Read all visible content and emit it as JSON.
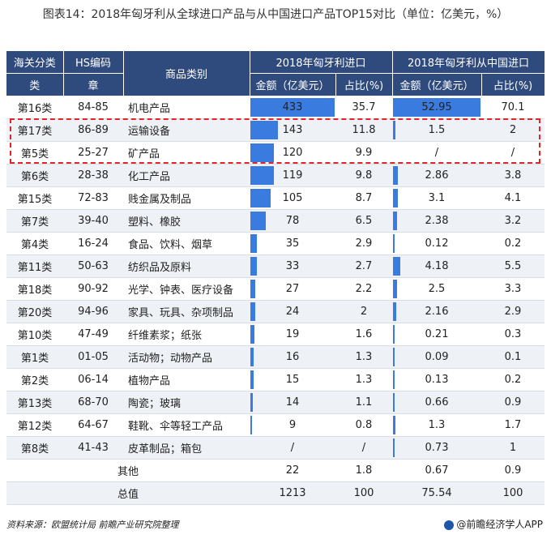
{
  "title": "图表14：2018年匈牙利从全球进口产品与从中国进口产品TOP15对比（单位：亿美元，%）",
  "headers": {
    "customs_class": "海关分类",
    "class_sub": "类",
    "hs_code": "HS编码",
    "hs_sub": "章",
    "category": "商品类别",
    "global_group": "2018年匈牙利进口",
    "china_group": "2018年匈牙利从中国进口",
    "amount": "金额（亿美元）",
    "share": "占比(%)",
    "amount2": "金额（亿美元）",
    "share2": "占比(%)"
  },
  "rows": [
    {
      "cls": "第16类",
      "hs": "84-85",
      "name": "机电产品",
      "g_amt": "433",
      "g_share": "35.7",
      "c_amt": "52.95",
      "c_share": "70.1"
    },
    {
      "cls": "第17类",
      "hs": "86-89",
      "name": "运输设备",
      "g_amt": "143",
      "g_share": "11.8",
      "c_amt": "1.5",
      "c_share": "2"
    },
    {
      "cls": "第5类",
      "hs": "25-27",
      "name": "矿产品",
      "g_amt": "120",
      "g_share": "9.9",
      "c_amt": "/",
      "c_share": "/"
    },
    {
      "cls": "第6类",
      "hs": "28-38",
      "name": "化工产品",
      "g_amt": "119",
      "g_share": "9.8",
      "c_amt": "2.86",
      "c_share": "3.8"
    },
    {
      "cls": "第15类",
      "hs": "72-83",
      "name": "贱金属及制品",
      "g_amt": "105",
      "g_share": "8.7",
      "c_amt": "3.1",
      "c_share": "4.1"
    },
    {
      "cls": "第7类",
      "hs": "39-40",
      "name": "塑料、橡胶",
      "g_amt": "78",
      "g_share": "6.5",
      "c_amt": "2.38",
      "c_share": "3.2"
    },
    {
      "cls": "第4类",
      "hs": "16-24",
      "name": "食品、饮料、烟草",
      "g_amt": "35",
      "g_share": "2.9",
      "c_amt": "0.12",
      "c_share": "0.2"
    },
    {
      "cls": "第11类",
      "hs": "50-63",
      "name": "纺织品及原料",
      "g_amt": "33",
      "g_share": "2.7",
      "c_amt": "4.18",
      "c_share": "5.5"
    },
    {
      "cls": "第18类",
      "hs": "90-92",
      "name": "光学、钟表、医疗设备",
      "g_amt": "27",
      "g_share": "2.2",
      "c_amt": "2.5",
      "c_share": "3.3"
    },
    {
      "cls": "第20类",
      "hs": "94-96",
      "name": "家具、玩具、杂项制品",
      "g_amt": "24",
      "g_share": "2",
      "c_amt": "2.16",
      "c_share": "2.9"
    },
    {
      "cls": "第10类",
      "hs": "47-49",
      "name": "纤维素浆；纸张",
      "g_amt": "19",
      "g_share": "1.6",
      "c_amt": "0.21",
      "c_share": "0.3"
    },
    {
      "cls": "第1类",
      "hs": "01-05",
      "name": "活动物；动物产品",
      "g_amt": "16",
      "g_share": "1.3",
      "c_amt": "0.09",
      "c_share": "0.1"
    },
    {
      "cls": "第2类",
      "hs": "06-14",
      "name": "植物产品",
      "g_amt": "15",
      "g_share": "1.3",
      "c_amt": "0.13",
      "c_share": "0.2"
    },
    {
      "cls": "第13类",
      "hs": "68-70",
      "name": "陶瓷；玻璃",
      "g_amt": "14",
      "g_share": "1.1",
      "c_amt": "0.66",
      "c_share": "0.9"
    },
    {
      "cls": "第12类",
      "hs": "64-67",
      "name": "鞋靴、伞等轻工产品",
      "g_amt": "9",
      "g_share": "0.8",
      "c_amt": "1.3",
      "c_share": "1.7"
    },
    {
      "cls": "第8类",
      "hs": "41-43",
      "name": "皮革制品；箱包",
      "g_amt": "/",
      "g_share": "/",
      "c_amt": "0.73",
      "c_share": "1"
    }
  ],
  "other_row": {
    "label": "其他",
    "g_amt": "22",
    "g_share": "1.8",
    "c_amt": "0.67",
    "c_share": "0.9"
  },
  "total_row": {
    "label": "总值",
    "g_amt": "1213",
    "g_share": "100",
    "c_amt": "75.54",
    "c_share": "100"
  },
  "source": "资料来源：欧盟统计局 前瞻产业研究院整理",
  "brand": "@前瞻经济学人APP",
  "colors": {
    "header": "#2f4a7c",
    "bar": "#3a7be0",
    "highlight": "#e0242b"
  },
  "chart_data": {
    "type": "table",
    "title": "图表14：2018年匈牙利从全球进口产品与从中国进口产品TOP15对比（单位：亿美元，%）",
    "categories": [
      "机电产品",
      "运输设备",
      "矿产品",
      "化工产品",
      "贱金属及制品",
      "塑料、橡胶",
      "食品、饮料、烟草",
      "纺织品及原料",
      "光学、钟表、医疗设备",
      "家具、玩具、杂项制品",
      "纤维素浆；纸张",
      "活动物；动物产品",
      "植物产品",
      "陶瓷；玻璃",
      "鞋靴、伞等轻工产品",
      "皮革制品；箱包"
    ],
    "series": [
      {
        "name": "2018年匈牙利进口 金额（亿美元）",
        "values": [
          433,
          143,
          120,
          119,
          105,
          78,
          35,
          33,
          27,
          24,
          19,
          16,
          15,
          14,
          9,
          null
        ]
      },
      {
        "name": "2018年匈牙利进口 占比(%)",
        "values": [
          35.7,
          11.8,
          9.9,
          9.8,
          8.7,
          6.5,
          2.9,
          2.7,
          2.2,
          2,
          1.6,
          1.3,
          1.3,
          1.1,
          0.8,
          null
        ]
      },
      {
        "name": "2018年匈牙利从中国进口 金额（亿美元）",
        "values": [
          52.95,
          1.5,
          null,
          2.86,
          3.1,
          2.38,
          0.12,
          4.18,
          2.5,
          2.16,
          0.21,
          0.09,
          0.13,
          0.66,
          1.3,
          0.73
        ]
      },
      {
        "name": "2018年匈牙利从中国进口 占比(%)",
        "values": [
          70.1,
          2,
          null,
          3.8,
          4.1,
          3.2,
          0.2,
          5.5,
          3.3,
          2.9,
          0.3,
          0.1,
          0.2,
          0.9,
          1.7,
          1
        ]
      }
    ],
    "g_bar_max": 433,
    "c_bar_max": 52.95
  }
}
